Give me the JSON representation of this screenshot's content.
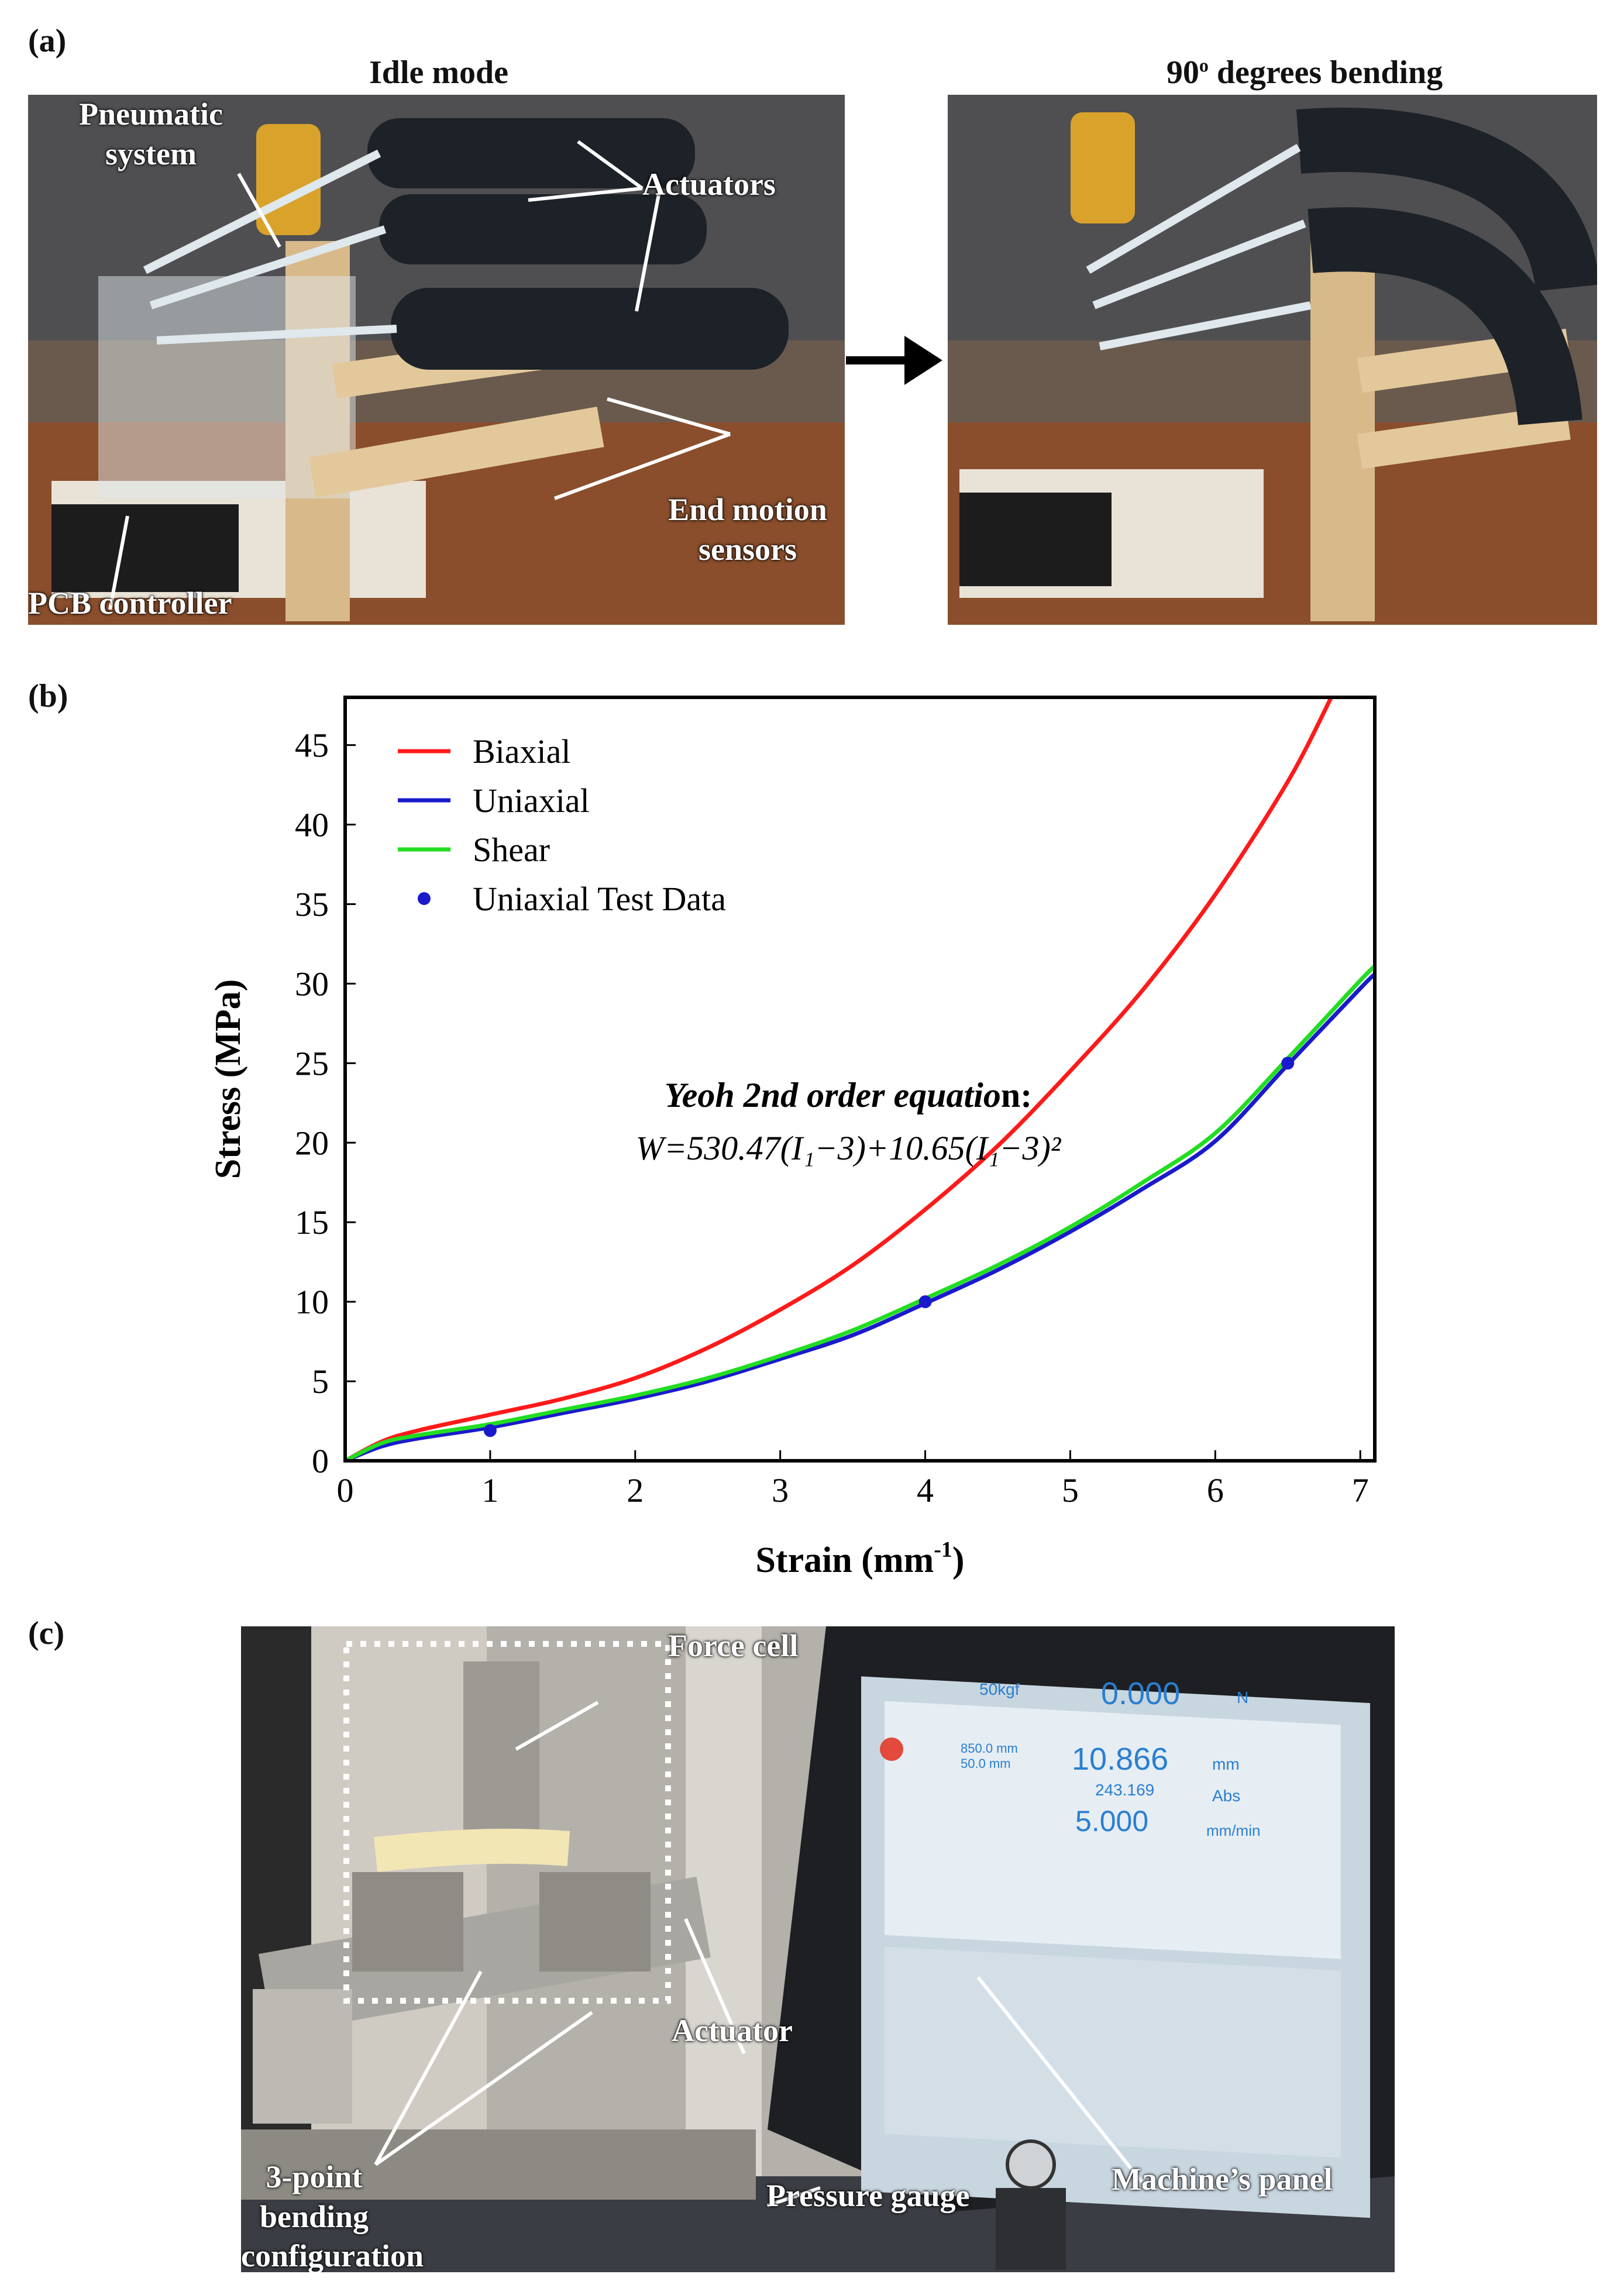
{
  "panel_a": {
    "letter": "(a)",
    "left_title": "Idle mode",
    "right_title": "90",
    "right_title_sup": "o",
    "right_title_rest": " degrees bending",
    "labels": {
      "pneumatic": "Pneumatic system",
      "actuators": "Actuators",
      "end_motion": "End motion sensors",
      "pcb": "PCB controller"
    }
  },
  "panel_b": {
    "letter": "(b)"
  },
  "panel_c": {
    "letter": "(c)",
    "labels": {
      "force_cell": "Force cell",
      "actuator": "Actuator",
      "bending": "3-point bending configuration",
      "pressure": "Pressure gauge",
      "panel": "Machine’s panel"
    },
    "screen": {
      "load_unit_label": "50kgf",
      "load_value": "0.000",
      "load_unit": "N",
      "pos_line1": "850.0 mm",
      "pos_line2": "50.0 mm",
      "pos_value": "10.866",
      "pos_unit": "mm",
      "abs_value": "243.169",
      "abs_label": "Abs",
      "speed_value": "5.000",
      "speed_unit": "mm/min"
    }
  },
  "chart_data": {
    "type": "line",
    "xlabel": "Strain (mm",
    "xlabel_sup": "-1",
    "xlabel_end": ")",
    "ylabel": "Stress (MPa)",
    "xlim": [
      0,
      7.1
    ],
    "ylim": [
      0,
      48
    ],
    "xticks": [
      0,
      1,
      2,
      3,
      4,
      5,
      6,
      7
    ],
    "yticks": [
      0,
      5,
      10,
      15,
      20,
      25,
      30,
      35,
      40,
      45
    ],
    "grid": false,
    "legend_position": "top-left",
    "annotation": {
      "line1_italic": "Yeoh 2nd order equatio",
      "line1_end": "n:",
      "line2": "W=530.47(I₁−3)+10.65(I₁−3)²"
    },
    "series": [
      {
        "name": "Biaxial",
        "color": "#ff1a1a",
        "x": [
          0,
          0.25,
          0.5,
          1,
          1.5,
          2,
          2.5,
          3,
          3.5,
          4,
          4.5,
          5,
          5.5,
          6,
          6.5,
          6.8
        ],
        "y": [
          0,
          1.2,
          1.9,
          2.9,
          3.9,
          5.2,
          7.1,
          9.5,
          12.3,
          15.8,
          19.8,
          24.5,
          29.6,
          35.6,
          42.7,
          48
        ]
      },
      {
        "name": "Uniaxial",
        "color": "#1a1acc",
        "x": [
          0,
          0.25,
          0.5,
          1,
          1.5,
          2,
          2.5,
          3,
          3.5,
          4,
          4.5,
          5,
          5.5,
          6,
          6.5,
          7,
          7.1
        ],
        "y": [
          0,
          0.9,
          1.4,
          2.1,
          3.0,
          3.9,
          5.0,
          6.4,
          7.9,
          9.9,
          12.0,
          14.4,
          17.1,
          20.1,
          24.9,
          29.7,
          30.6
        ]
      },
      {
        "name": "Shear",
        "color": "#22dd22",
        "x": [
          0,
          0.25,
          0.5,
          1,
          1.5,
          2,
          2.5,
          3,
          3.5,
          4,
          4.5,
          5,
          5.5,
          6,
          6.5,
          7,
          7.1
        ],
        "y": [
          0,
          1.1,
          1.6,
          2.3,
          3.2,
          4.1,
          5.2,
          6.6,
          8.2,
          10.2,
          12.3,
          14.7,
          17.5,
          20.6,
          25.3,
          30.2,
          31.1
        ]
      },
      {
        "name": "Uniaxial Test Data",
        "color": "#1a1acc",
        "marker": "dot",
        "x": [
          1,
          4,
          6.5
        ],
        "y": [
          1.9,
          10.0,
          25.0
        ]
      }
    ]
  }
}
